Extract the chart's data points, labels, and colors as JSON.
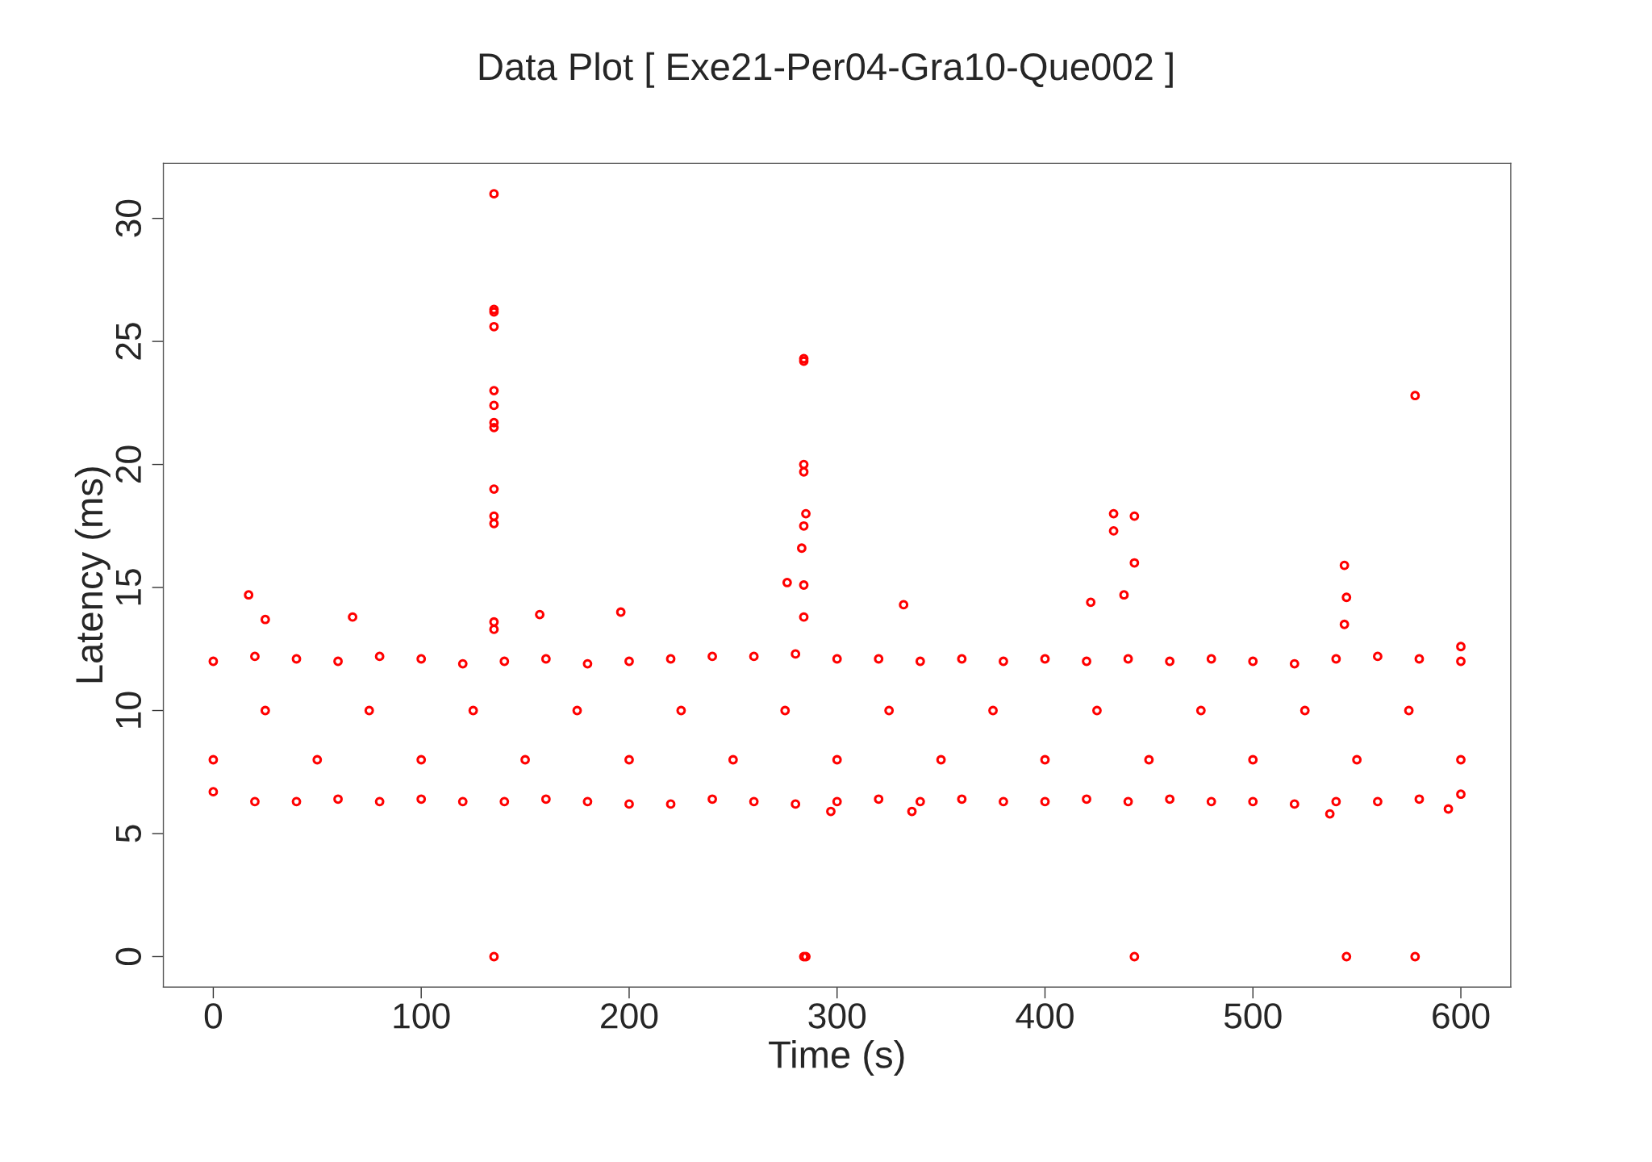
{
  "chart_data": {
    "type": "scatter",
    "title": "Data Plot [ Exe21-Per04-Gra10-Que002 ]",
    "xlabel": "Time (s)",
    "ylabel": "Latency (ms)",
    "xlim": [
      -24,
      624
    ],
    "ylim": [
      -1.24,
      32.24
    ],
    "xticks": [
      0,
      100,
      200,
      300,
      400,
      500,
      600
    ],
    "yticks": [
      0,
      5,
      10,
      15,
      20,
      25,
      30
    ],
    "grid": false,
    "marker": "circle",
    "series": [
      {
        "color": "#ff0000",
        "x": [
          135,
          135,
          135,
          135,
          135,
          135,
          135,
          135,
          135,
          135,
          135,
          135,
          135,
          135,
          284,
          284,
          284,
          284,
          285,
          284,
          283,
          284,
          276,
          284,
          284,
          285,
          433,
          433,
          443,
          443,
          438,
          443,
          422,
          544,
          545,
          544,
          545,
          578,
          578,
          17,
          25,
          67,
          157,
          196,
          332,
          600,
          336,
          537,
          594,
          297,
          0,
          20,
          40,
          60,
          80,
          100,
          120,
          140,
          160,
          180,
          200,
          220,
          240,
          260,
          280,
          300,
          320,
          340,
          360,
          380,
          400,
          420,
          440,
          460,
          480,
          500,
          520,
          540,
          560,
          580,
          600,
          0,
          20,
          40,
          60,
          80,
          100,
          120,
          140,
          160,
          180,
          200,
          220,
          240,
          260,
          280,
          300,
          320,
          340,
          360,
          380,
          400,
          420,
          440,
          460,
          480,
          500,
          520,
          540,
          560,
          580,
          600,
          0,
          50,
          100,
          150,
          200,
          250,
          300,
          350,
          400,
          450,
          500,
          550,
          600,
          25,
          75,
          125,
          175,
          225,
          275,
          325,
          375,
          425,
          475,
          525,
          575
        ],
        "values": [
          31.0,
          26.3,
          26.2,
          25.6,
          23.0,
          22.4,
          21.7,
          21.5,
          19.0,
          17.9,
          17.6,
          13.6,
          13.3,
          0,
          24.3,
          24.2,
          20.0,
          19.7,
          18.0,
          17.5,
          16.6,
          15.1,
          15.2,
          13.8,
          0,
          0,
          18.0,
          17.3,
          17.9,
          16.0,
          14.7,
          0,
          14.4,
          15.9,
          14.6,
          13.5,
          0,
          22.8,
          0,
          14.7,
          13.7,
          13.8,
          13.9,
          14.0,
          14.3,
          12.6,
          5.9,
          5.8,
          6.0,
          5.9,
          12.0,
          12.2,
          12.1,
          12.0,
          12.2,
          12.1,
          11.9,
          12.0,
          12.1,
          11.9,
          12.0,
          12.1,
          12.2,
          12.2,
          12.3,
          12.1,
          12.1,
          12.0,
          12.1,
          12.0,
          12.1,
          12.0,
          12.1,
          12.0,
          12.1,
          12.0,
          11.9,
          12.1,
          12.2,
          12.1,
          12.0,
          6.7,
          6.3,
          6.3,
          6.4,
          6.3,
          6.4,
          6.3,
          6.3,
          6.4,
          6.3,
          6.2,
          6.2,
          6.4,
          6.3,
          6.2,
          6.3,
          6.4,
          6.3,
          6.4,
          6.3,
          6.3,
          6.4,
          6.3,
          6.4,
          6.3,
          6.3,
          6.2,
          6.3,
          6.3,
          6.4,
          6.6,
          8.0,
          8.0,
          8.0,
          8.0,
          8.0,
          8.0,
          8.0,
          8.0,
          8.0,
          8.0,
          8.0,
          8.0,
          8.0,
          10.0,
          10.0,
          10.0,
          10.0,
          10.0,
          10.0,
          10.0,
          10.0,
          10.0,
          10.0,
          10.0,
          10.0
        ]
      }
    ]
  }
}
